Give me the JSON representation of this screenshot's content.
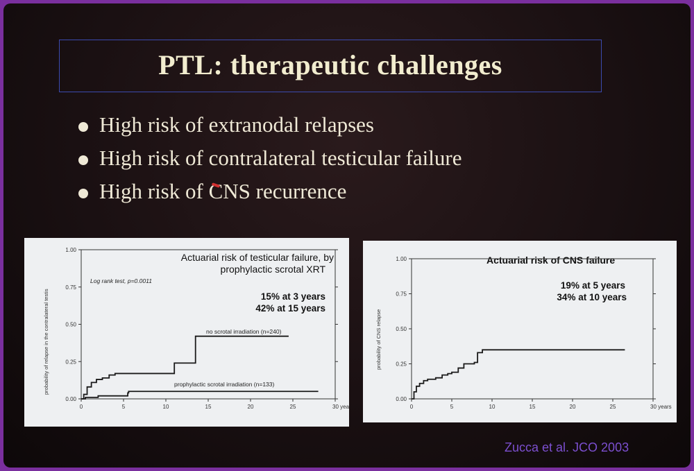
{
  "slide": {
    "title": "PTL: therapeutic challenges",
    "bullets": [
      "High risk of extranodal relapses",
      "High risk of contralateral testicular failure",
      "High risk of CNS recurrence"
    ],
    "citation": "Zucca et al. JCO 2003"
  },
  "chart_data": [
    {
      "type": "line",
      "title_lines": [
        "Actuarial risk of testicular failure, by",
        "prophylactic scrotal XRT"
      ],
      "ylabel": "probability of relapse in the contralateral testis",
      "xlabel": "",
      "x_ticks": [
        "0",
        "5",
        "10",
        "15",
        "20",
        "25",
        "30 years"
      ],
      "y_ticks": [
        "0.00",
        "0.25",
        "0.50",
        "0.75",
        "1.00"
      ],
      "xlim": [
        0,
        30
      ],
      "ylim": [
        0,
        1
      ],
      "annotations": [
        "Log rank test, p=0.0011",
        "15% at 3 years",
        "42% at 15 years"
      ],
      "series": [
        {
          "name": "no scrotal irradiation (n=240)",
          "step": true,
          "points": [
            [
              0,
              0
            ],
            [
              0.3,
              0.03
            ],
            [
              0.7,
              0.08
            ],
            [
              1.2,
              0.11
            ],
            [
              1.8,
              0.13
            ],
            [
              2.5,
              0.14
            ],
            [
              3.3,
              0.16
            ],
            [
              4,
              0.17
            ],
            [
              10,
              0.17
            ],
            [
              11,
              0.24
            ],
            [
              13.3,
              0.24
            ],
            [
              13.5,
              0.42
            ],
            [
              24.5,
              0.42
            ]
          ]
        },
        {
          "name": "prophylactic scrotal irradiation (n=133)",
          "step": true,
          "points": [
            [
              0,
              0
            ],
            [
              0.5,
              0.01
            ],
            [
              2,
              0.02
            ],
            [
              5.5,
              0.04
            ],
            [
              5.6,
              0.05
            ],
            [
              28,
              0.05
            ]
          ]
        }
      ]
    },
    {
      "type": "line",
      "title_lines": [
        "Actuarial risk of CNS failure"
      ],
      "ylabel": "probability of CNS relapse",
      "xlabel": "",
      "x_ticks": [
        "0",
        "5",
        "10",
        "15",
        "20",
        "25",
        "30 years"
      ],
      "y_ticks": [
        "0.00",
        "0.25",
        "0.50",
        "0.75",
        "1.00"
      ],
      "xlim": [
        0,
        30
      ],
      "ylim": [
        0,
        1
      ],
      "annotations": [
        "19% at 5 years",
        "34% at 10 years"
      ],
      "series": [
        {
          "name": "",
          "step": true,
          "points": [
            [
              0,
              0
            ],
            [
              0.3,
              0.05
            ],
            [
              0.6,
              0.09
            ],
            [
              1,
              0.11
            ],
            [
              1.5,
              0.13
            ],
            [
              2,
              0.14
            ],
            [
              3,
              0.15
            ],
            [
              3.8,
              0.17
            ],
            [
              4.5,
              0.18
            ],
            [
              5,
              0.19
            ],
            [
              5.8,
              0.22
            ],
            [
              6.5,
              0.25
            ],
            [
              7.8,
              0.26
            ],
            [
              8.2,
              0.33
            ],
            [
              8.8,
              0.35
            ],
            [
              26.5,
              0.35
            ]
          ]
        }
      ]
    }
  ]
}
